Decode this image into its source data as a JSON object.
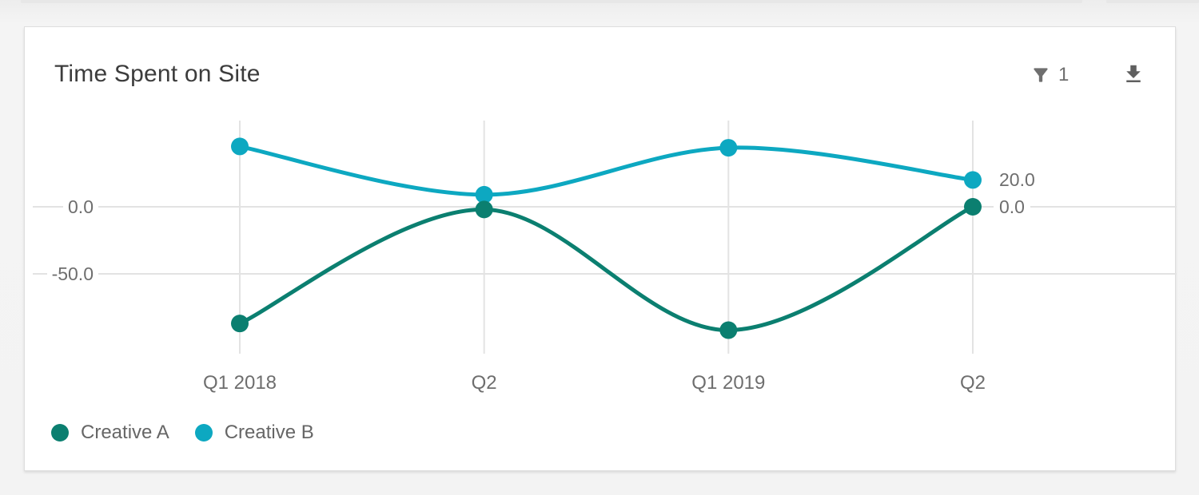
{
  "toolbar": {
    "filter_count": "1",
    "filter_icon": "funnel-icon",
    "download_icon": "download-icon"
  },
  "chart_data": {
    "type": "line",
    "title": "Time Spent on Site",
    "categories": [
      "Q1 2018",
      "Q2",
      "Q1 2019",
      "Q2"
    ],
    "series": [
      {
        "name": "Creative A",
        "color": "#0B7F70",
        "values": [
          -87,
          -2,
          -92,
          0
        ],
        "end_label": "0.0"
      },
      {
        "name": "Creative B",
        "color": "#0DA8C1",
        "values": [
          45,
          9,
          44,
          20
        ],
        "end_label": "20.0"
      }
    ],
    "y_ticks": [
      {
        "value": 0,
        "label": "0.0"
      },
      {
        "value": -50,
        "label": "-50.0"
      }
    ],
    "ylim": [
      -110,
      65
    ],
    "xlabel": "",
    "ylabel": "",
    "grid": true,
    "grid_color": "#e3e3e3",
    "text_color": "#6e6e6e",
    "smooth": true,
    "legend_position": "bottom-left"
  }
}
